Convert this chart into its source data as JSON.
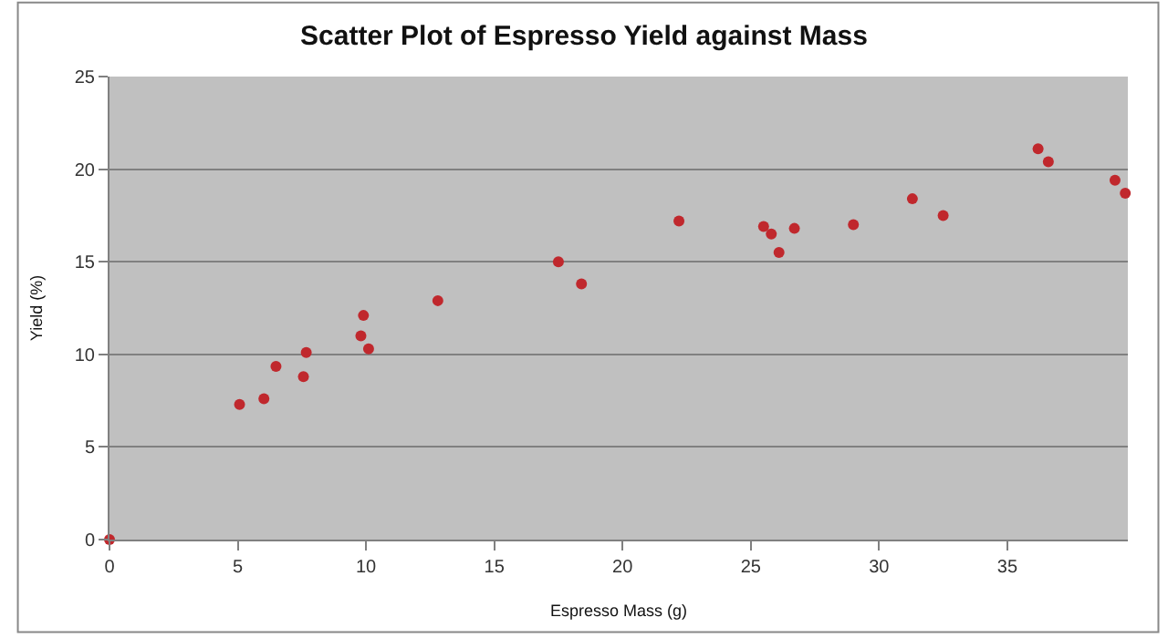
{
  "chart_data": {
    "type": "scatter",
    "title": "Scatter Plot of Espresso Yield against Mass",
    "xlabel": "Espresso Mass (g)",
    "ylabel": "Yield (%)",
    "x": [
      0,
      5.07,
      6.02,
      6.49,
      7.56,
      7.67,
      9.8,
      9.9,
      10.1,
      12.8,
      17.5,
      18.4,
      22.2,
      25.5,
      25.8,
      26.1,
      26.7,
      29.0,
      31.3,
      32.5,
      36.2,
      36.6,
      39.2,
      39.6
    ],
    "series": [
      {
        "color": "#c0282d",
        "values": [
          0,
          7.3,
          7.6,
          9.35,
          8.8,
          10.1,
          11.0,
          12.1,
          10.3,
          12.9,
          15.0,
          13.8,
          17.2,
          16.9,
          16.5,
          15.5,
          16.8,
          17.0,
          18.4,
          17.5,
          21.1,
          20.4,
          19.4,
          18.7
        ]
      }
    ],
    "xlim": [
      0,
      39.7
    ],
    "xticks": [
      0,
      5,
      10,
      15,
      20,
      25,
      30,
      35
    ],
    "ylim": [
      0,
      25
    ],
    "yticks": [
      0,
      5,
      10,
      15,
      20,
      25
    ],
    "grid": "y",
    "legend": false,
    "marker": "circle"
  }
}
